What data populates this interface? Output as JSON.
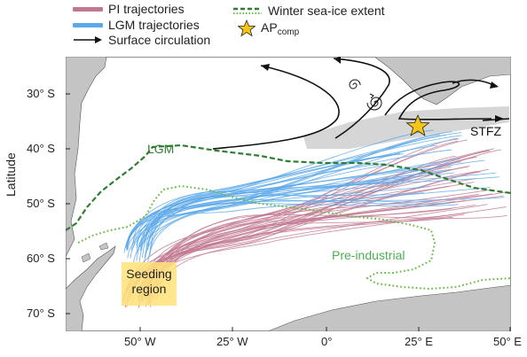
{
  "legend": {
    "pi_label": "PI trajectories",
    "lgm_label": "LGM trajectories",
    "surface_label": "Surface circulation",
    "seaice_label": "Winter sea-ice extent",
    "ap_label": "AP",
    "ap_sub": "comp"
  },
  "axes": {
    "ylabel": "Latitude",
    "yticks": [
      "30° S",
      "40° S",
      "50° S",
      "60° S",
      "70° S"
    ],
    "xticks": [
      "50° W",
      "25° W",
      "0°",
      "25° E",
      "50° E"
    ]
  },
  "annotations": {
    "lgm": "LGM",
    "preindustrial": "Pre-industrial",
    "stfz": "STFZ",
    "seeding_line1": "Seeding",
    "seeding_line2": "region"
  },
  "colors": {
    "pi": "#c07890",
    "lgm": "#5aa8e8",
    "lgm_ice": "#2e7d32",
    "pi_ice": "#6abf4b",
    "land": "#c4c4c4",
    "star": "#f5c518",
    "seeding": "#ffe27a"
  }
}
